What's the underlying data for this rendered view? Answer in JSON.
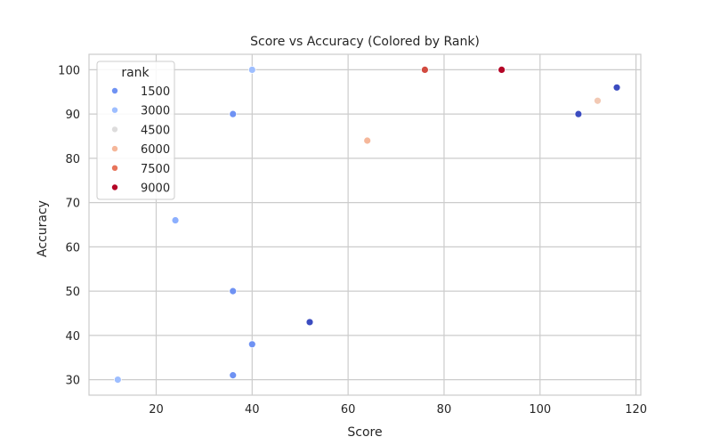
{
  "chart_data": {
    "type": "scatter",
    "title": "Score vs Accuracy (Colored by Rank)",
    "xlabel": "Score",
    "ylabel": "Accuracy",
    "xlim": [
      6,
      121
    ],
    "ylim": [
      26.5,
      103.5
    ],
    "xticks": [
      20,
      40,
      60,
      80,
      100,
      120
    ],
    "yticks": [
      30,
      40,
      50,
      60,
      70,
      80,
      90,
      100
    ],
    "grid": true,
    "hue": "rank",
    "legend": {
      "title": "rank",
      "placement": "top-left",
      "entries": [
        {
          "label": "1500",
          "color": "#6f92f3"
        },
        {
          "label": "3000",
          "color": "#9ebeff"
        },
        {
          "label": "4500",
          "color": "#dddcdc"
        },
        {
          "label": "6000",
          "color": "#f5b79a"
        },
        {
          "label": "7500",
          "color": "#e7745b"
        },
        {
          "label": "9000",
          "color": "#b40426"
        }
      ]
    },
    "points": [
      {
        "x": 12,
        "y": 30,
        "color": "#9ebeff"
      },
      {
        "x": 24,
        "y": 66,
        "color": "#8caffe"
      },
      {
        "x": 36,
        "y": 90,
        "color": "#6f92f3"
      },
      {
        "x": 36,
        "y": 50,
        "color": "#6f92f3"
      },
      {
        "x": 36,
        "y": 31,
        "color": "#6f92f3"
      },
      {
        "x": 40,
        "y": 100,
        "color": "#9ebeff"
      },
      {
        "x": 40,
        "y": 38,
        "color": "#6f92f3"
      },
      {
        "x": 52,
        "y": 43,
        "color": "#3b4cc0"
      },
      {
        "x": 64,
        "y": 84,
        "color": "#f5b79a"
      },
      {
        "x": 76,
        "y": 100,
        "color": "#d24b40"
      },
      {
        "x": 92,
        "y": 100,
        "color": "#b40426"
      },
      {
        "x": 108,
        "y": 90,
        "color": "#3b4cc0"
      },
      {
        "x": 112,
        "y": 93,
        "color": "#f2c9b4"
      },
      {
        "x": 116,
        "y": 96,
        "color": "#3b4cc0"
      }
    ]
  }
}
